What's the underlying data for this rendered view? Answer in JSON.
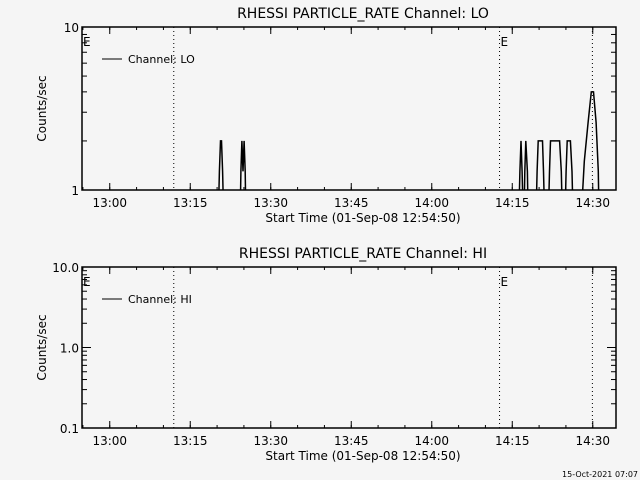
{
  "chart_data": [
    {
      "type": "line",
      "title": "RHESSI PARTICLE_RATE Channel: LO",
      "xlabel": "Start Time (01-Sep-08 12:54:50)",
      "ylabel": "Counts/sec",
      "yscale": "log",
      "ylim": [
        1,
        10
      ],
      "ytick_labels": [
        "1",
        "10"
      ],
      "ytick_values": [
        1,
        10
      ],
      "xlim_minutes_from_start": [
        0,
        99.5
      ],
      "xtick_labels": [
        "13:00",
        "13:15",
        "13:30",
        "13:45",
        "14:00",
        "14:15",
        "14:30"
      ],
      "xtick_minutes": [
        5.17,
        20.17,
        35.17,
        50.17,
        65.17,
        80.17,
        95.17
      ],
      "legend": {
        "label": "Channel: LO",
        "placement": "top-left"
      },
      "event_lines_minutes": [
        17.1,
        77.8,
        95.1
      ],
      "event_markers": [
        {
          "label": "E",
          "minute": 0
        },
        {
          "label": "E",
          "minute": 77.8
        }
      ],
      "series": [
        {
          "name": "Channel: LO",
          "points": [
            [
              25.3,
              0.5
            ],
            [
              25.6,
              1.3
            ],
            [
              25.8,
              2
            ],
            [
              26.0,
              2
            ],
            [
              26.2,
              1.3
            ],
            [
              26.5,
              0.5
            ],
            [
              29.4,
              0.5
            ],
            [
              29.6,
              1.3
            ],
            [
              29.8,
              2
            ],
            [
              30.0,
              1.3
            ],
            [
              30.2,
              2
            ],
            [
              30.4,
              1.3
            ],
            [
              30.6,
              0.5
            ],
            [
              81.3,
              0.5
            ],
            [
              81.6,
              1.3
            ],
            [
              81.8,
              2
            ],
            [
              82.0,
              1.3
            ],
            [
              82.3,
              0.5
            ],
            [
              82.5,
              1.3
            ],
            [
              82.7,
              2
            ],
            [
              83.0,
              1.3
            ],
            [
              83.2,
              0.5
            ],
            [
              84.5,
              0.5
            ],
            [
              84.8,
              1.3
            ],
            [
              85.0,
              2
            ],
            [
              85.8,
              2
            ],
            [
              86.0,
              1.3
            ],
            [
              86.3,
              0.5
            ],
            [
              86.8,
              0.5
            ],
            [
              87.1,
              1.3
            ],
            [
              87.3,
              2
            ],
            [
              89.0,
              2
            ],
            [
              89.3,
              1.3
            ],
            [
              89.6,
              0.5
            ],
            [
              89.9,
              0.5
            ],
            [
              90.2,
              1.3
            ],
            [
              90.4,
              2
            ],
            [
              91.0,
              2
            ],
            [
              91.3,
              1.3
            ],
            [
              91.6,
              0.5
            ],
            [
              92.8,
              0.5
            ],
            [
              93.6,
              1.5
            ],
            [
              94.3,
              2.6
            ],
            [
              94.9,
              4
            ],
            [
              95.3,
              4
            ],
            [
              95.8,
              2.6
            ],
            [
              96.2,
              1.3
            ],
            [
              96.4,
              0.5
            ]
          ]
        }
      ]
    },
    {
      "type": "line",
      "title": "RHESSI PARTICLE_RATE Channel: HI",
      "xlabel": "Start Time (01-Sep-08 12:54:50)",
      "ylabel": "Counts/sec",
      "yscale": "log",
      "ylim": [
        0.1,
        10
      ],
      "ytick_labels": [
        "0.1",
        "1.0",
        "10.0"
      ],
      "ytick_values": [
        0.1,
        1,
        10
      ],
      "xlim_minutes_from_start": [
        0,
        99.5
      ],
      "xtick_labels": [
        "13:00",
        "13:15",
        "13:30",
        "13:45",
        "14:00",
        "14:15",
        "14:30"
      ],
      "xtick_minutes": [
        5.17,
        20.17,
        35.17,
        50.17,
        65.17,
        80.17,
        95.17
      ],
      "legend": {
        "label": "Channel: HI",
        "placement": "top-left"
      },
      "event_lines_minutes": [
        17.1,
        77.8,
        95.1
      ],
      "event_markers": [
        {
          "label": "E",
          "minute": 0
        },
        {
          "label": "E",
          "minute": 77.8
        }
      ],
      "series": [
        {
          "name": "Channel: HI",
          "points": []
        }
      ]
    }
  ],
  "footer": {
    "timestamp": "15-Oct-2021 07:07"
  }
}
